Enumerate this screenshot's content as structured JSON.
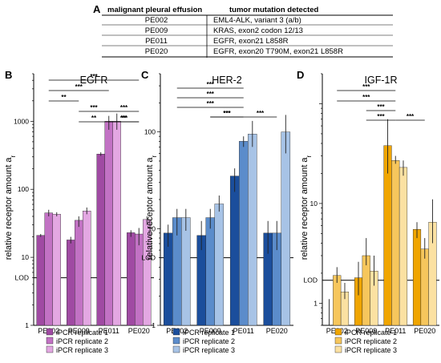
{
  "table": {
    "panel_label": "A",
    "headers": [
      "malignant pleural effusion",
      "tumor mutation detected"
    ],
    "rows": [
      [
        "PE002",
        "EML4-ALK, variant 3 (a/b)"
      ],
      [
        "PE009",
        "KRAS, exon2 codon 12/13"
      ],
      [
        "PE011",
        "EGFR, exon21 L858R"
      ],
      [
        "PE020",
        "EGFR, exon20 T790M, exon21 L858R"
      ]
    ]
  },
  "chart_data": [
    {
      "type": "bar",
      "panel_label": "B",
      "title": "EGFR",
      "ylabel": "relative receptor amount a",
      "ylabel_sub": "r",
      "yscale": "log",
      "ylim": [
        1,
        5000
      ],
      "yticks": [
        1,
        10,
        100,
        1000
      ],
      "lod": 5,
      "lod_label": "LOD",
      "categories": [
        "PE002",
        "PE009",
        "PE011",
        "PE020"
      ],
      "colors": [
        "#a04aa3",
        "#c272c4",
        "#e3a7e2"
      ],
      "legend": [
        "iPCR replicate 1",
        "iPCR replicate 2",
        "iPCR replicate 3"
      ],
      "series": [
        {
          "name": "iPCR replicate 1",
          "values": [
            21,
            18,
            330,
            23
          ],
          "errors": [
            [
              20,
              22
            ],
            [
              16,
              20
            ],
            [
              310,
              350
            ],
            [
              20,
              25
            ]
          ]
        },
        {
          "name": "iPCR replicate 2",
          "values": [
            45,
            35,
            1000,
            22
          ],
          "errors": [
            [
              40,
              50
            ],
            [
              28,
              40
            ],
            [
              750,
              1200
            ],
            [
              15,
              27
            ]
          ]
        },
        {
          "name": "iPCR replicate 3",
          "values": [
            43,
            48,
            1000,
            36
          ],
          "errors": [
            [
              40,
              46
            ],
            [
              43,
              54
            ],
            [
              750,
              1300
            ],
            [
              30,
              40
            ]
          ]
        }
      ],
      "significance": [
        {
          "from": 0,
          "to": 3,
          "label": "***"
        },
        {
          "from": 0,
          "to": 2,
          "label": "***"
        },
        {
          "from": 0,
          "to": 1,
          "label": "**"
        },
        {
          "from": 2,
          "to": 3,
          "label": "***"
        },
        {
          "from": 1,
          "to": 2,
          "label": "***"
        },
        {
          "from": 2,
          "to": 3,
          "label": "***"
        },
        {
          "from": 1,
          "to": 2,
          "label": "**"
        },
        {
          "from": 2,
          "to": 3,
          "label": "**"
        }
      ]
    },
    {
      "type": "bar",
      "panel_label": "C",
      "title": "HER-2",
      "ylabel": "relative receptor amount a",
      "ylabel_sub": "r",
      "yscale": "log",
      "ylim": [
        1,
        400
      ],
      "yticks": [
        1,
        10,
        100
      ],
      "lod": 5,
      "lod_label": "LOD",
      "categories": [
        "PE002",
        "PE009",
        "PE011",
        "PE020"
      ],
      "colors": [
        "#1b4e9c",
        "#5b8ccb",
        "#a7c3e6"
      ],
      "legend": [
        "iPCR replicate 1",
        "iPCR replicate 2",
        "iPCR replicate 3"
      ],
      "series": [
        {
          "name": "iPCR replicate 1",
          "values": [
            9,
            8.5,
            35,
            9
          ],
          "errors": [
            [
              6.5,
              11
            ],
            [
              6,
              12
            ],
            [
              24,
              42
            ],
            [
              5.5,
              12
            ]
          ]
        },
        {
          "name": "iPCR replicate 2",
          "values": [
            13,
            13,
            80,
            9
          ],
          "errors": [
            [
              8.5,
              16
            ],
            [
              10,
              16
            ],
            [
              70,
              90
            ],
            [
              6,
              12
            ]
          ]
        },
        {
          "name": "iPCR replicate 3",
          "values": [
            13,
            18,
            95,
            100
          ],
          "errors": [
            [
              9.5,
              16
            ],
            [
              15,
              22
            ],
            [
              70,
              130
            ],
            [
              60,
              150
            ]
          ]
        }
      ],
      "significance": [
        {
          "from": 0,
          "to": 2,
          "label": "***"
        },
        {
          "from": 0,
          "to": 2,
          "label": "***"
        },
        {
          "from": 0,
          "to": 2,
          "label": "***"
        },
        {
          "from": 1,
          "to": 2,
          "label": "***"
        },
        {
          "from": 1,
          "to": 2,
          "label": "***"
        },
        {
          "from": 2,
          "to": 3,
          "label": "***"
        }
      ]
    },
    {
      "type": "bar",
      "panel_label": "D",
      "title": "IGF-1R",
      "ylabel": "relative receptor amount a",
      "ylabel_sub": "r",
      "yscale": "log",
      "ylim": [
        0.6,
        200
      ],
      "yticks": [
        1,
        10
      ],
      "lod": 1.7,
      "lod_label": "LOD",
      "categories": [
        "PE002",
        "PE009",
        "PE011",
        "PE020"
      ],
      "colors": [
        "#f0a500",
        "#f6c65c",
        "#fbe1a2"
      ],
      "legend": [
        "iPCR replicate 1",
        "iPCR replicate 2",
        "iPCR replicate 3"
      ],
      "series": [
        {
          "name": "iPCR replicate 1",
          "values": [
            0.5,
            1.8,
            38,
            5.5
          ],
          "errors": [
            [
              0.3,
              1.1
            ],
            [
              1.2,
              2.6
            ],
            [
              20,
              70
            ],
            [
              4.5,
              6.5
            ]
          ]
        },
        {
          "name": "iPCR replicate 2",
          "values": [
            1.9,
            3,
            27,
            3.5
          ],
          "errors": [
            [
              1.6,
              2.3
            ],
            [
              2.4,
              4.5
            ],
            [
              25,
              30
            ],
            [
              2.8,
              4.5
            ]
          ]
        },
        {
          "name": "iPCR replicate 3",
          "values": [
            1.3,
            2.1,
            23,
            6.5
          ],
          "errors": [
            [
              1.1,
              1.6
            ],
            [
              1.5,
              3
            ],
            [
              19,
              27
            ],
            [
              4,
              11
            ]
          ]
        }
      ],
      "significance": [
        {
          "from": 0,
          "to": 2,
          "label": "***"
        },
        {
          "from": 0,
          "to": 2,
          "label": "***"
        },
        {
          "from": 1,
          "to": 2,
          "label": "***"
        },
        {
          "from": 1,
          "to": 2,
          "label": "***"
        },
        {
          "from": 2,
          "to": 3,
          "label": "***"
        }
      ]
    }
  ]
}
